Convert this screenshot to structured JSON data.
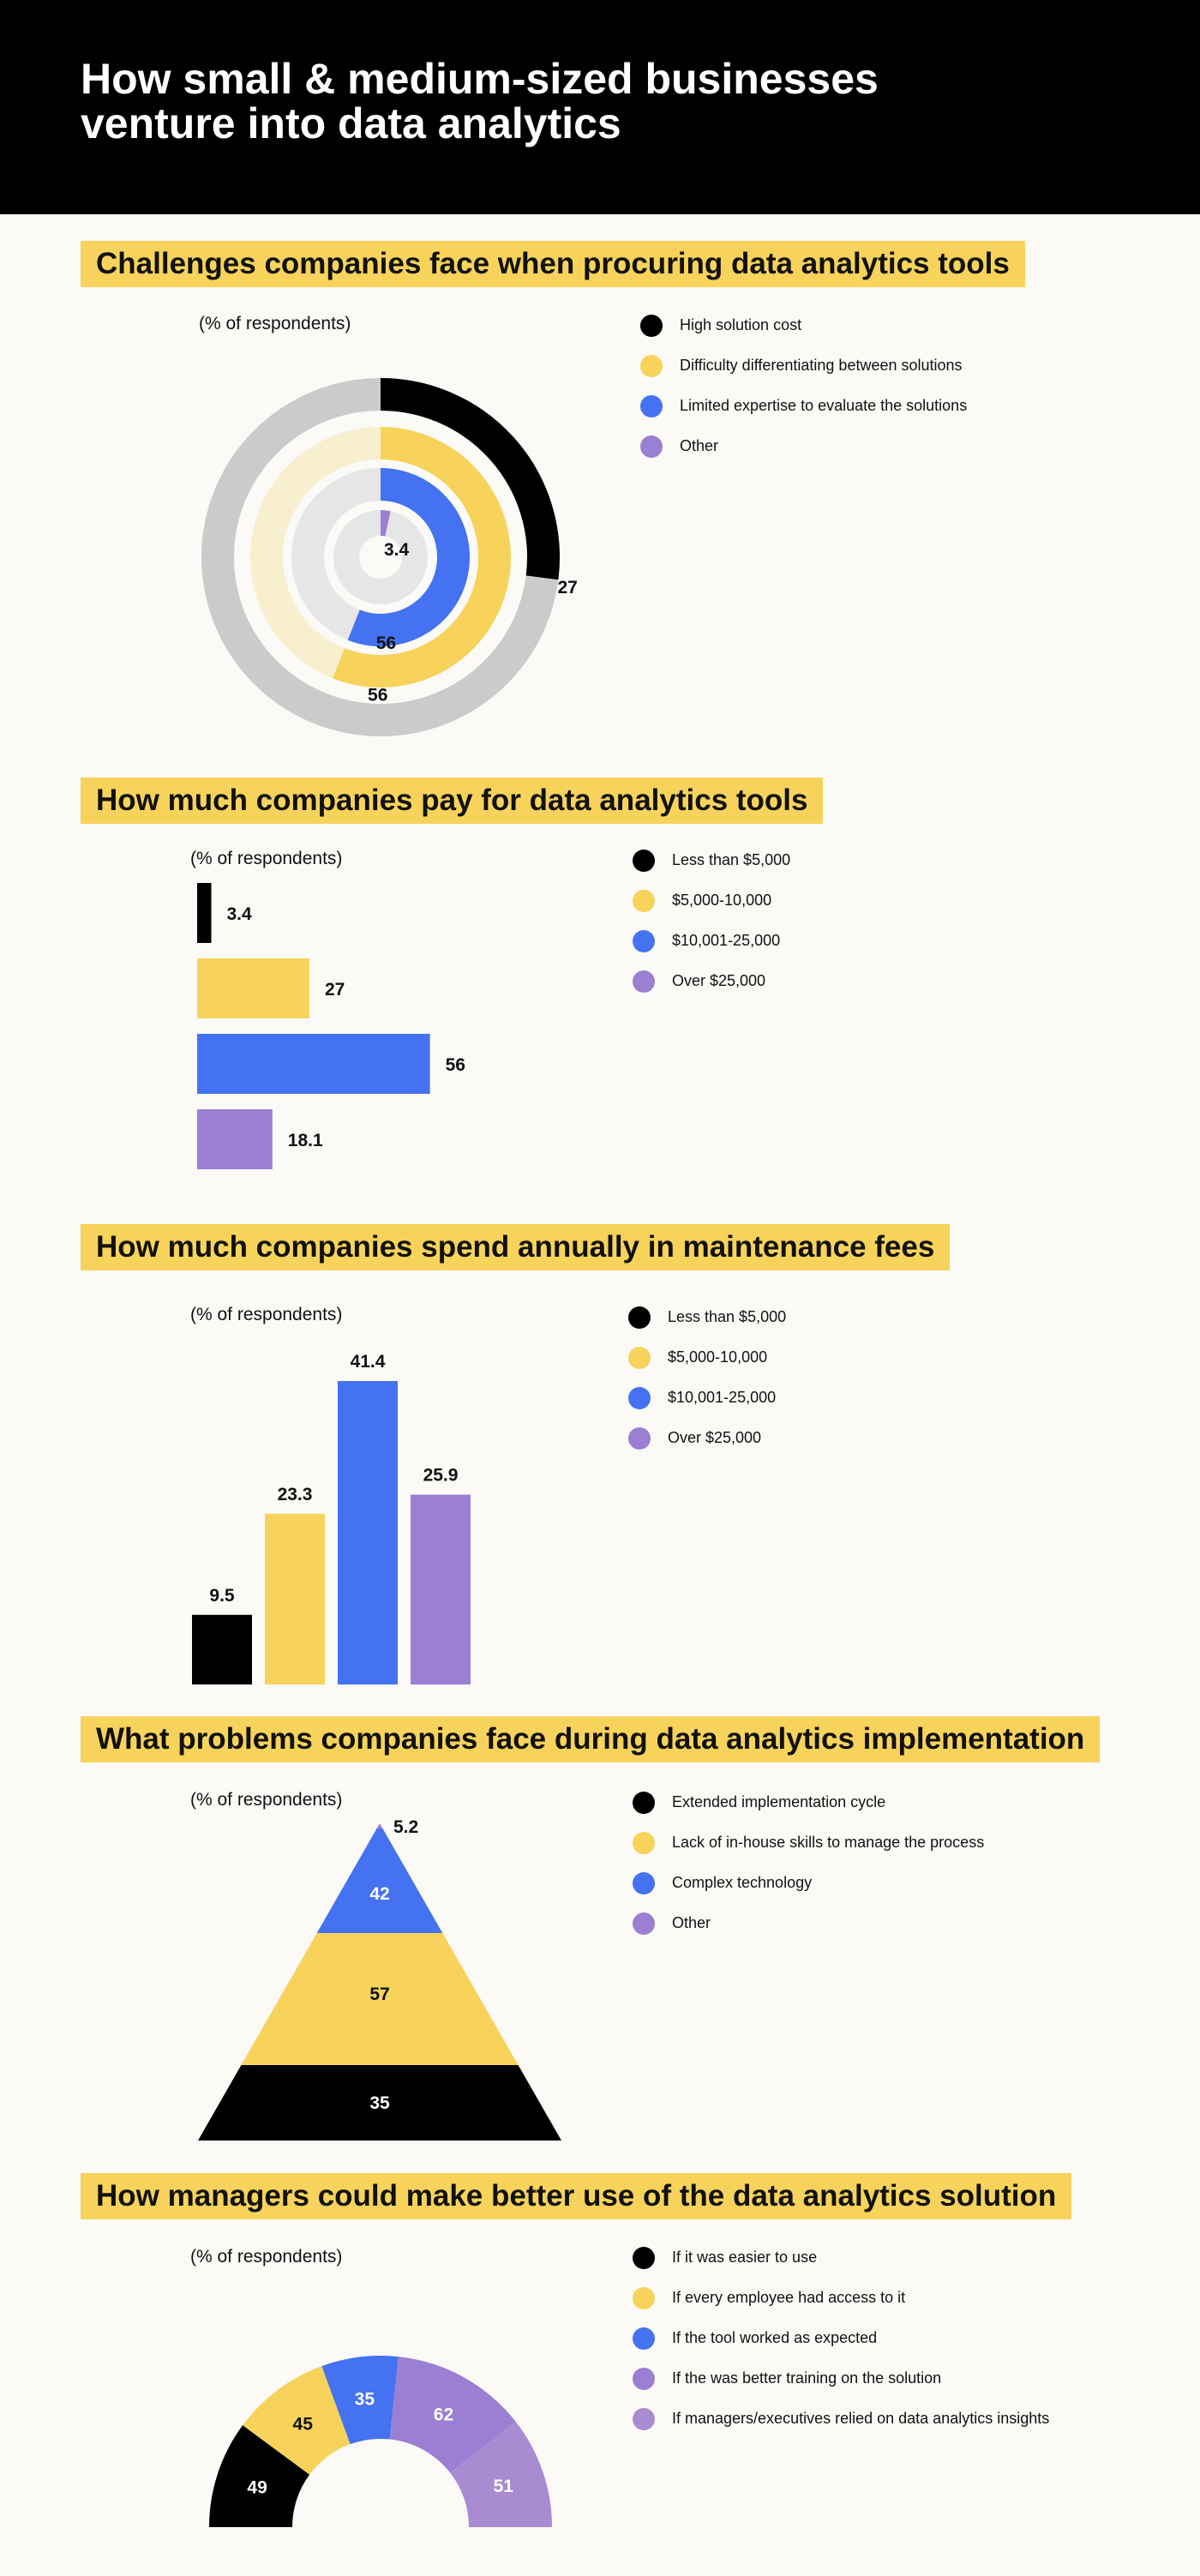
{
  "title": "How small & medium-sized businesses venture into data analytics",
  "colors": {
    "black": "#000000",
    "yellow": "#f7d35b",
    "blue": "#4472f0",
    "purple": "#9a7fd3",
    "grey": "#cbcbcb"
  },
  "sections": {
    "s1": {
      "title": "Challenges companies face when procuring data analytics tools",
      "note": "(% of respondents)"
    },
    "s2": {
      "title": "How much companies pay for data analytics tools",
      "note": "(% of respondents)"
    },
    "s3": {
      "title": "How much companies spend annually in maintenance fees",
      "note": "(% of respondents)"
    },
    "s4": {
      "title": "What problems companies face during data analytics implementation",
      "note": "(% of respondents)"
    },
    "s5": {
      "title": "How managers could make better use of the data analytics solution",
      "note": "(% of respondents)"
    }
  },
  "chart_data": [
    {
      "type": "radial-bar",
      "title": "Challenges companies face when procuring data analytics tools",
      "categories": [
        "High solution cost",
        "Difficulty differentiating between solutions",
        "Limited expertise to evaluate the solutions",
        "Other"
      ],
      "values": [
        27,
        56,
        56,
        3.4
      ],
      "value_labels": [
        "27",
        "56",
        "56",
        "3.4"
      ],
      "unit": "% of respondents",
      "colors": [
        "#000000",
        "#f7d35b",
        "#4472f0",
        "#9a7fd3"
      ]
    },
    {
      "type": "bar",
      "orientation": "horizontal",
      "title": "How much companies pay for data analytics tools",
      "categories": [
        "Less than $5,000",
        "$5,000-10,000",
        "$10,001-25,000",
        "Over $25,000"
      ],
      "values": [
        3.4,
        27,
        56,
        18.1
      ],
      "value_labels": [
        "3.4",
        "27",
        "56",
        "18.1"
      ],
      "unit": "% of respondents",
      "colors": [
        "#000000",
        "#f7d35b",
        "#4472f0",
        "#9a7fd3"
      ]
    },
    {
      "type": "bar",
      "orientation": "vertical",
      "title": "How much companies spend annually in maintenance fees",
      "categories": [
        "Less than $5,000",
        "$5,000-10,000",
        "$10,001-25,000",
        "Over $25,000"
      ],
      "values": [
        9.5,
        23.3,
        41.4,
        25.9
      ],
      "value_labels": [
        "9.5",
        "23.3",
        "41.4",
        "25.9"
      ],
      "unit": "% of respondents",
      "colors": [
        "#000000",
        "#f7d35b",
        "#4472f0",
        "#9a7fd3"
      ]
    },
    {
      "type": "pyramid",
      "title": "What problems companies face during data analytics implementation",
      "categories": [
        "Extended implementation cycle",
        "Lack of in-house skills to manage the process",
        "Complex technology",
        "Other"
      ],
      "values": [
        35,
        57,
        42,
        5.2
      ],
      "value_labels": [
        "35",
        "57",
        "42",
        "5.2"
      ],
      "unit": "% of respondents",
      "colors": [
        "#000000",
        "#f7d35b",
        "#4472f0",
        "#9a7fd3"
      ]
    },
    {
      "type": "semi-donut",
      "title": "How managers could make better use of the data analytics solution",
      "categories": [
        "If it was easier to use",
        "If every employee had access to it",
        "If the tool worked as expected",
        "If the was better training on the solution",
        "If managers/executives relied on data analytics insights"
      ],
      "values": [
        49,
        45,
        35,
        62,
        51
      ],
      "value_labels": [
        "49",
        "45",
        "35",
        "62",
        "51"
      ],
      "unit": "% of respondents",
      "colors": [
        "#000000",
        "#f7d35b",
        "#4472f0",
        "#9a7fd3",
        "#a98bd1"
      ]
    }
  ]
}
